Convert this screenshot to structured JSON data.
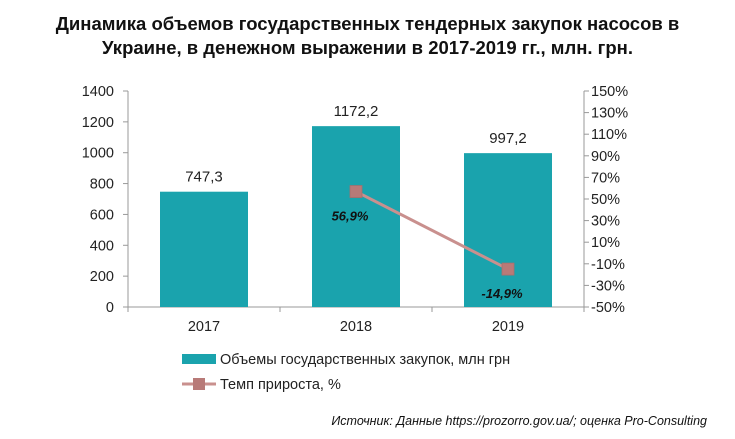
{
  "title_line1": "Динамика объемов государственных тендерных закупок насосов в",
  "title_line2": "Украине, в денежном выражении в 2017-2019 гг., млн. грн.",
  "source": "Источник: Данные https://prozorro.gov.ua/; оценка Pro-Consulting",
  "colors": {
    "bar": "#1aa3ad",
    "line": "#c9908e",
    "marker": "#b87a78"
  },
  "chart_data": {
    "type": "bar",
    "categories": [
      "2017",
      "2018",
      "2019"
    ],
    "series": [
      {
        "name": "Объемы государственных закупок, млн грн",
        "type": "bar",
        "axis": "left",
        "values": [
          747.3,
          1172.2,
          997.2
        ],
        "labels": [
          "747,3",
          "1172,2",
          "997,2"
        ]
      },
      {
        "name": "Темп прироста, %",
        "type": "line",
        "axis": "right",
        "values": [
          null,
          56.9,
          -14.9
        ],
        "labels": [
          "",
          "56,9%",
          "-14,9%"
        ]
      }
    ],
    "ylim": [
      0,
      1400
    ],
    "yticks": [
      "0",
      "200",
      "400",
      "600",
      "800",
      "1000",
      "1200",
      "1400"
    ],
    "y2lim": [
      -50,
      150
    ],
    "y2ticks": [
      "-50%",
      "-30%",
      "-10%",
      "10%",
      "30%",
      "50%",
      "70%",
      "90%",
      "110%",
      "130%",
      "150%"
    ],
    "grid": false,
    "legend_position": "bottom"
  }
}
